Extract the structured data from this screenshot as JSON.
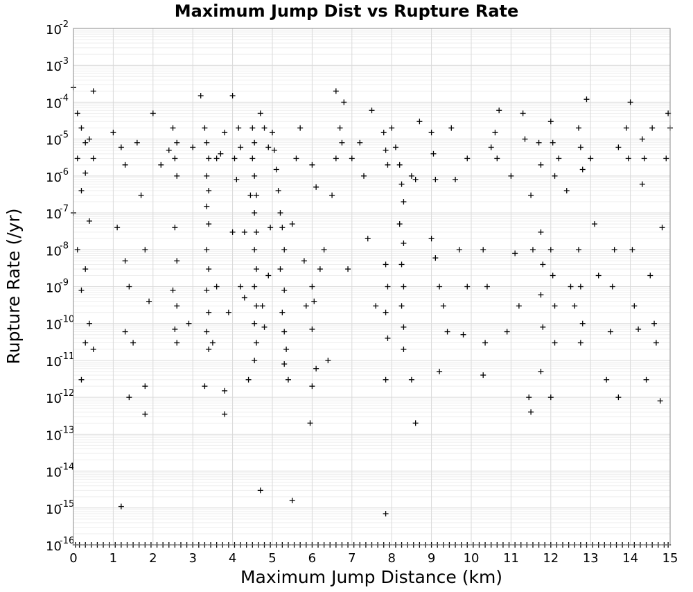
{
  "chart_data": {
    "type": "scatter",
    "title": "Maximum Jump Dist vs Rupture Rate",
    "xlabel": "Maximum Jump Distance (km)",
    "ylabel": "Rupture Rate (/yr)",
    "xlim": [
      0,
      15
    ],
    "ylim": [
      1e-16,
      0.01
    ],
    "yscale": "log",
    "marker": "+",
    "color": "#000000",
    "grid": true,
    "xticks": [
      "0",
      "1",
      "2",
      "3",
      "4",
      "5",
      "6",
      "7",
      "8",
      "9",
      "10",
      "11",
      "12",
      "13",
      "14",
      "15"
    ],
    "yticks": [
      {
        "base": "10",
        "exp": "-2"
      },
      {
        "base": "10",
        "exp": "-3"
      },
      {
        "base": "10",
        "exp": "-4"
      },
      {
        "base": "10",
        "exp": "-5"
      },
      {
        "base": "10",
        "exp": "-6"
      },
      {
        "base": "10",
        "exp": "-7"
      },
      {
        "base": "10",
        "exp": "-8"
      },
      {
        "base": "10",
        "exp": "-9"
      },
      {
        "base": "10",
        "exp": "-10"
      },
      {
        "base": "10",
        "exp": "-11"
      },
      {
        "base": "10",
        "exp": "-12"
      },
      {
        "base": "10",
        "exp": "-13"
      },
      {
        "base": "10",
        "exp": "-14"
      },
      {
        "base": "10",
        "exp": "-15"
      },
      {
        "base": "10",
        "exp": "-16"
      }
    ],
    "points": [
      [
        0.0,
        0.00025
      ],
      [
        0.1,
        5e-05
      ],
      [
        0.2,
        2e-05
      ],
      [
        0.3,
        8e-06
      ],
      [
        0.1,
        3e-06
      ],
      [
        0.3,
        1.2e-06
      ],
      [
        0.2,
        4e-07
      ],
      [
        0.0,
        1e-07
      ],
      [
        0.1,
        1e-08
      ],
      [
        0.3,
        3e-09
      ],
      [
        0.2,
        8e-10
      ],
      [
        0.4,
        1e-10
      ],
      [
        0.3,
        3e-11
      ],
      [
        0.2,
        3e-12
      ],
      [
        0.5,
        0.0002
      ],
      [
        0.4,
        1e-05
      ],
      [
        0.5,
        3e-06
      ],
      [
        0.4,
        6e-08
      ],
      [
        0.5,
        2e-11
      ],
      [
        1.0,
        1.5e-05
      ],
      [
        1.2,
        6e-06
      ],
      [
        1.3,
        2e-06
      ],
      [
        1.1,
        4e-08
      ],
      [
        1.3,
        5e-09
      ],
      [
        1.4,
        1e-09
      ],
      [
        1.2,
        1.1e-15
      ],
      [
        1.4,
        1e-12
      ],
      [
        1.5,
        3e-11
      ],
      [
        1.3,
        6e-11
      ],
      [
        1.6,
        8e-06
      ],
      [
        1.7,
        3e-07
      ],
      [
        1.8,
        1e-08
      ],
      [
        1.8,
        3.5e-13
      ],
      [
        1.8,
        2e-12
      ],
      [
        1.9,
        4e-10
      ],
      [
        2.0,
        5e-05
      ],
      [
        2.2,
        2e-06
      ],
      [
        2.4,
        5e-06
      ],
      [
        2.5,
        2e-05
      ],
      [
        2.6,
        8e-06
      ],
      [
        2.55,
        3e-06
      ],
      [
        2.6,
        1e-06
      ],
      [
        2.55,
        4e-08
      ],
      [
        2.6,
        5e-09
      ],
      [
        2.5,
        8e-10
      ],
      [
        2.6,
        3e-10
      ],
      [
        2.55,
        7e-11
      ],
      [
        2.6,
        3e-11
      ],
      [
        2.9,
        1e-10
      ],
      [
        3.0,
        6e-06
      ],
      [
        3.2,
        0.00015
      ],
      [
        3.3,
        2e-05
      ],
      [
        3.35,
        8e-06
      ],
      [
        3.4,
        3e-06
      ],
      [
        3.35,
        1e-06
      ],
      [
        3.4,
        4e-07
      ],
      [
        3.35,
        1.5e-07
      ],
      [
        3.4,
        5e-08
      ],
      [
        3.35,
        1e-08
      ],
      [
        3.4,
        3e-09
      ],
      [
        3.35,
        8e-10
      ],
      [
        3.4,
        2e-10
      ],
      [
        3.35,
        6e-11
      ],
      [
        3.4,
        2e-11
      ],
      [
        3.3,
        2e-12
      ],
      [
        3.5,
        3e-11
      ],
      [
        3.6,
        1e-09
      ],
      [
        3.6,
        3e-06
      ],
      [
        3.7,
        4e-06
      ],
      [
        3.8,
        3.5e-13
      ],
      [
        3.8,
        1.5e-12
      ],
      [
        3.9,
        2e-10
      ],
      [
        3.8,
        1.5e-05
      ],
      [
        4.0,
        0.00015
      ],
      [
        4.0,
        3e-08
      ],
      [
        4.05,
        3e-06
      ],
      [
        4.1,
        8e-07
      ],
      [
        4.2,
        6e-06
      ],
      [
        4.15,
        2e-05
      ],
      [
        4.2,
        1e-09
      ],
      [
        4.3,
        5e-10
      ],
      [
        4.3,
        3e-08
      ],
      [
        4.4,
        3e-12
      ],
      [
        4.45,
        3e-07
      ],
      [
        4.5,
        2e-05
      ],
      [
        4.55,
        8e-06
      ],
      [
        4.5,
        3e-06
      ],
      [
        4.55,
        1e-06
      ],
      [
        4.6,
        3e-07
      ],
      [
        4.55,
        1e-07
      ],
      [
        4.6,
        3e-08
      ],
      [
        4.55,
        1e-08
      ],
      [
        4.6,
        3e-09
      ],
      [
        4.55,
        1e-09
      ],
      [
        4.6,
        3e-10
      ],
      [
        4.55,
        1e-10
      ],
      [
        4.6,
        3e-11
      ],
      [
        4.55,
        1e-11
      ],
      [
        4.7,
        3e-15
      ],
      [
        4.7,
        5e-05
      ],
      [
        4.8,
        2e-05
      ],
      [
        4.9,
        6e-06
      ],
      [
        4.75,
        3e-10
      ],
      [
        4.8,
        8e-11
      ],
      [
        4.9,
        2e-09
      ],
      [
        4.95,
        4e-08
      ],
      [
        5.0,
        1.5e-05
      ],
      [
        5.05,
        5e-06
      ],
      [
        5.1,
        1.5e-06
      ],
      [
        5.15,
        4e-07
      ],
      [
        5.2,
        1e-07
      ],
      [
        5.25,
        4e-08
      ],
      [
        5.3,
        1e-08
      ],
      [
        5.2,
        3e-09
      ],
      [
        5.3,
        8e-10
      ],
      [
        5.25,
        2e-10
      ],
      [
        5.3,
        6e-11
      ],
      [
        5.3,
        8e-12
      ],
      [
        5.35,
        2e-11
      ],
      [
        5.5,
        1.6e-15
      ],
      [
        5.4,
        3e-12
      ],
      [
        5.5,
        5e-08
      ],
      [
        5.6,
        3e-06
      ],
      [
        5.7,
        2e-05
      ],
      [
        5.8,
        5e-09
      ],
      [
        5.85,
        3e-10
      ],
      [
        6.0,
        2e-06
      ],
      [
        6.1,
        5e-07
      ],
      [
        6.0,
        1e-09
      ],
      [
        6.05,
        4e-10
      ],
      [
        6.0,
        7e-11
      ],
      [
        6.0,
        2e-12
      ],
      [
        5.95,
        2e-13
      ],
      [
        6.1,
        6e-12
      ],
      [
        6.2,
        3e-09
      ],
      [
        6.3,
        1e-08
      ],
      [
        6.4,
        1e-11
      ],
      [
        6.5,
        3e-07
      ],
      [
        6.6,
        0.0002
      ],
      [
        6.7,
        2e-05
      ],
      [
        6.75,
        8e-06
      ],
      [
        6.6,
        3e-06
      ],
      [
        6.8,
        0.0001
      ],
      [
        6.9,
        3e-09
      ],
      [
        7.0,
        3e-06
      ],
      [
        7.2,
        8e-06
      ],
      [
        7.3,
        1e-06
      ],
      [
        7.4,
        2e-08
      ],
      [
        7.5,
        6e-05
      ],
      [
        7.6,
        3e-10
      ],
      [
        7.8,
        1.5e-05
      ],
      [
        7.85,
        5e-06
      ],
      [
        7.9,
        2e-06
      ],
      [
        7.85,
        4e-09
      ],
      [
        7.9,
        1e-09
      ],
      [
        7.85,
        2e-10
      ],
      [
        7.9,
        4e-11
      ],
      [
        7.85,
        3e-12
      ],
      [
        7.85,
        7e-16
      ],
      [
        8.0,
        2e-05
      ],
      [
        8.1,
        6e-06
      ],
      [
        8.2,
        2e-06
      ],
      [
        8.25,
        6e-07
      ],
      [
        8.3,
        2e-07
      ],
      [
        8.2,
        5e-08
      ],
      [
        8.3,
        1.5e-08
      ],
      [
        8.25,
        4e-09
      ],
      [
        8.3,
        1e-09
      ],
      [
        8.25,
        3e-10
      ],
      [
        8.3,
        8e-11
      ],
      [
        8.3,
        2e-11
      ],
      [
        8.5,
        3e-12
      ],
      [
        8.6,
        2e-13
      ],
      [
        8.5,
        1e-06
      ],
      [
        8.6,
        8e-07
      ],
      [
        8.7,
        3e-05
      ],
      [
        9.0,
        1.5e-05
      ],
      [
        9.05,
        4e-06
      ],
      [
        9.1,
        8e-07
      ],
      [
        9.0,
        2e-08
      ],
      [
        9.1,
        6e-09
      ],
      [
        9.2,
        1e-09
      ],
      [
        9.3,
        3e-10
      ],
      [
        9.4,
        6e-11
      ],
      [
        9.2,
        5e-12
      ],
      [
        9.5,
        2e-05
      ],
      [
        9.6,
        8e-07
      ],
      [
        9.7,
        1e-08
      ],
      [
        9.9,
        1e-09
      ],
      [
        9.9,
        3e-06
      ],
      [
        9.8,
        5e-11
      ],
      [
        10.3,
        4e-12
      ],
      [
        10.35,
        3e-11
      ],
      [
        10.4,
        1e-09
      ],
      [
        10.3,
        1e-08
      ],
      [
        10.5,
        6e-06
      ],
      [
        10.6,
        1.5e-05
      ],
      [
        10.7,
        6e-05
      ],
      [
        10.65,
        3e-06
      ],
      [
        10.9,
        6e-11
      ],
      [
        11.0,
        1e-06
      ],
      [
        11.1,
        8e-09
      ],
      [
        11.2,
        3e-10
      ],
      [
        11.3,
        5e-05
      ],
      [
        11.35,
        1e-05
      ],
      [
        11.45,
        1e-12
      ],
      [
        11.5,
        4e-13
      ],
      [
        11.5,
        3e-07
      ],
      [
        11.55,
        1e-08
      ],
      [
        11.7,
        8e-06
      ],
      [
        11.75,
        2e-06
      ],
      [
        11.75,
        3e-08
      ],
      [
        11.8,
        4e-09
      ],
      [
        11.75,
        6e-10
      ],
      [
        11.8,
        8e-11
      ],
      [
        11.75,
        5e-12
      ],
      [
        12.0,
        3e-05
      ],
      [
        12.05,
        8e-06
      ],
      [
        12.1,
        1e-06
      ],
      [
        12.0,
        1e-08
      ],
      [
        12.05,
        2e-09
      ],
      [
        12.1,
        3e-10
      ],
      [
        12.0,
        1e-12
      ],
      [
        12.1,
        3e-11
      ],
      [
        12.2,
        3e-06
      ],
      [
        12.4,
        4e-07
      ],
      [
        12.5,
        1e-09
      ],
      [
        12.6,
        3e-10
      ],
      [
        12.7,
        2e-05
      ],
      [
        12.75,
        6e-06
      ],
      [
        12.8,
        1.5e-06
      ],
      [
        12.7,
        1e-08
      ],
      [
        12.75,
        1e-09
      ],
      [
        12.8,
        1e-10
      ],
      [
        12.75,
        3e-11
      ],
      [
        12.9,
        0.00012
      ],
      [
        13.0,
        3e-06
      ],
      [
        13.1,
        5e-08
      ],
      [
        13.2,
        2e-09
      ],
      [
        13.4,
        3e-12
      ],
      [
        13.5,
        6e-11
      ],
      [
        13.55,
        1e-09
      ],
      [
        13.6,
        1e-08
      ],
      [
        13.7,
        6e-06
      ],
      [
        13.7,
        1e-12
      ],
      [
        13.9,
        2e-05
      ],
      [
        13.95,
        3e-06
      ],
      [
        14.0,
        0.0001
      ],
      [
        14.05,
        1e-08
      ],
      [
        14.1,
        3e-10
      ],
      [
        14.2,
        7e-11
      ],
      [
        14.3,
        1e-05
      ],
      [
        14.35,
        3e-06
      ],
      [
        14.3,
        6e-07
      ],
      [
        14.4,
        3e-12
      ],
      [
        14.5,
        2e-09
      ],
      [
        14.55,
        2e-05
      ],
      [
        14.6,
        1e-10
      ],
      [
        14.65,
        3e-11
      ],
      [
        14.75,
        8e-13
      ],
      [
        14.8,
        4e-08
      ],
      [
        14.9,
        3e-06
      ],
      [
        14.95,
        5e-05
      ],
      [
        15.0,
        2e-05
      ]
    ],
    "floor_points_x": [
      0.05,
      0.15,
      0.3,
      0.45,
      0.6,
      0.75,
      0.9,
      1.05,
      1.2,
      1.35,
      1.5,
      1.65,
      1.8,
      1.95,
      2.1,
      2.25,
      2.4,
      2.55,
      2.7,
      2.85,
      3.0,
      3.15,
      3.3,
      3.45,
      3.6,
      3.75,
      3.9,
      4.05,
      4.2,
      4.35,
      4.5,
      4.65,
      4.8,
      4.95,
      5.1,
      5.25,
      5.4,
      5.55,
      5.7,
      5.85,
      6.0,
      6.15,
      6.3,
      6.45,
      6.6,
      6.75,
      6.9,
      7.05,
      7.2,
      7.35,
      7.5,
      7.65,
      7.8,
      7.95,
      8.1,
      8.25,
      8.4,
      8.55,
      8.7,
      8.85,
      9.0,
      9.15,
      9.3,
      9.45,
      9.6,
      9.75,
      9.9,
      10.05,
      10.2,
      10.35,
      10.5,
      10.65,
      10.8,
      10.95,
      11.1,
      11.25,
      11.4,
      11.55,
      11.7,
      11.85,
      12.0,
      12.15,
      12.3,
      12.45,
      12.6,
      12.75,
      12.9,
      13.05,
      13.2,
      13.35,
      13.5,
      13.65,
      13.8,
      13.95,
      14.1,
      14.25,
      14.4,
      14.55,
      14.7,
      14.85,
      14.95
    ]
  }
}
